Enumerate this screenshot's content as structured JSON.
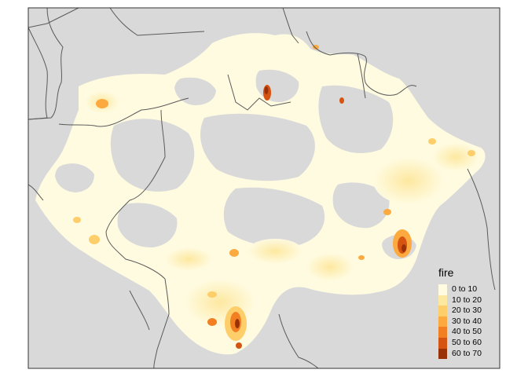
{
  "map": {
    "colors": {
      "background": "#d9d9d9",
      "border": "#5a5a5a",
      "frame": "#333333"
    }
  },
  "legend": {
    "title": "fire",
    "classes": [
      {
        "label": "0 to 10",
        "color": "#fffbe0"
      },
      {
        "label": "10 to 20",
        "color": "#fde8a0"
      },
      {
        "label": "20 to 30",
        "color": "#fdce6a"
      },
      {
        "label": "30 to 40",
        "color": "#fca93f"
      },
      {
        "label": "40 to 50",
        "color": "#f27f22"
      },
      {
        "label": "50 to 60",
        "color": "#d65412"
      },
      {
        "label": "60 to 70",
        "color": "#993208"
      }
    ]
  }
}
